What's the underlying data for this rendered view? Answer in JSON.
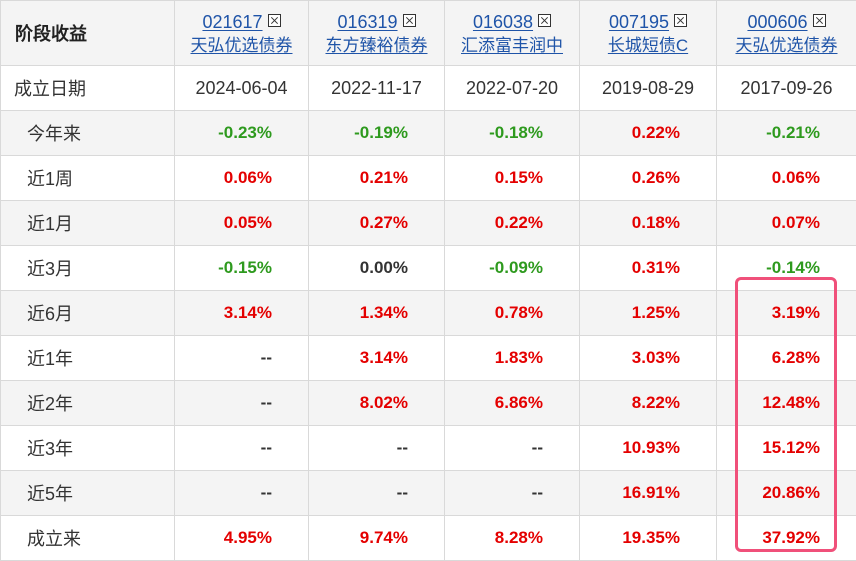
{
  "table": {
    "corner_label": "阶段收益",
    "funds": [
      {
        "code": "021617",
        "name": "天弘优选债券"
      },
      {
        "code": "016319",
        "name": "东方臻裕债券"
      },
      {
        "code": "016038",
        "name": "汇添富丰润中"
      },
      {
        "code": "007195",
        "name": "长城短债C"
      },
      {
        "code": "000606",
        "name": "天弘优选债券"
      }
    ],
    "inception": {
      "label": "成立日期",
      "values": [
        "2024-06-04",
        "2022-11-17",
        "2022-07-20",
        "2019-08-29",
        "2017-09-26"
      ]
    },
    "rows": [
      {
        "label": "今年来",
        "values": [
          "-0.23%",
          "-0.19%",
          "-0.18%",
          "0.22%",
          "-0.21%"
        ]
      },
      {
        "label": "近1周",
        "values": [
          "0.06%",
          "0.21%",
          "0.15%",
          "0.26%",
          "0.06%"
        ]
      },
      {
        "label": "近1月",
        "values": [
          "0.05%",
          "0.27%",
          "0.22%",
          "0.18%",
          "0.07%"
        ]
      },
      {
        "label": "近3月",
        "values": [
          "-0.15%",
          "0.00%",
          "-0.09%",
          "0.31%",
          "-0.14%"
        ]
      },
      {
        "label": "近6月",
        "values": [
          "3.14%",
          "1.34%",
          "0.78%",
          "1.25%",
          "3.19%"
        ]
      },
      {
        "label": "近1年",
        "values": [
          "--",
          "3.14%",
          "1.83%",
          "3.03%",
          "6.28%"
        ]
      },
      {
        "label": "近2年",
        "values": [
          "--",
          "8.02%",
          "6.86%",
          "8.22%",
          "12.48%"
        ]
      },
      {
        "label": "近3年",
        "values": [
          "--",
          "--",
          "--",
          "10.93%",
          "15.12%"
        ]
      },
      {
        "label": "近5年",
        "values": [
          "--",
          "--",
          "--",
          "16.91%",
          "20.86%"
        ]
      },
      {
        "label": "成立来",
        "values": [
          "4.95%",
          "9.74%",
          "8.28%",
          "19.35%",
          "37.92%"
        ]
      }
    ]
  },
  "colors": {
    "positive": "#e40000",
    "negative": "#2e9a1e",
    "link": "#1f54a8",
    "highlight_border": "#f0507a"
  },
  "highlight": {
    "column_fund_code": "000606",
    "from_row": "近6月",
    "to_row": "成立来"
  }
}
